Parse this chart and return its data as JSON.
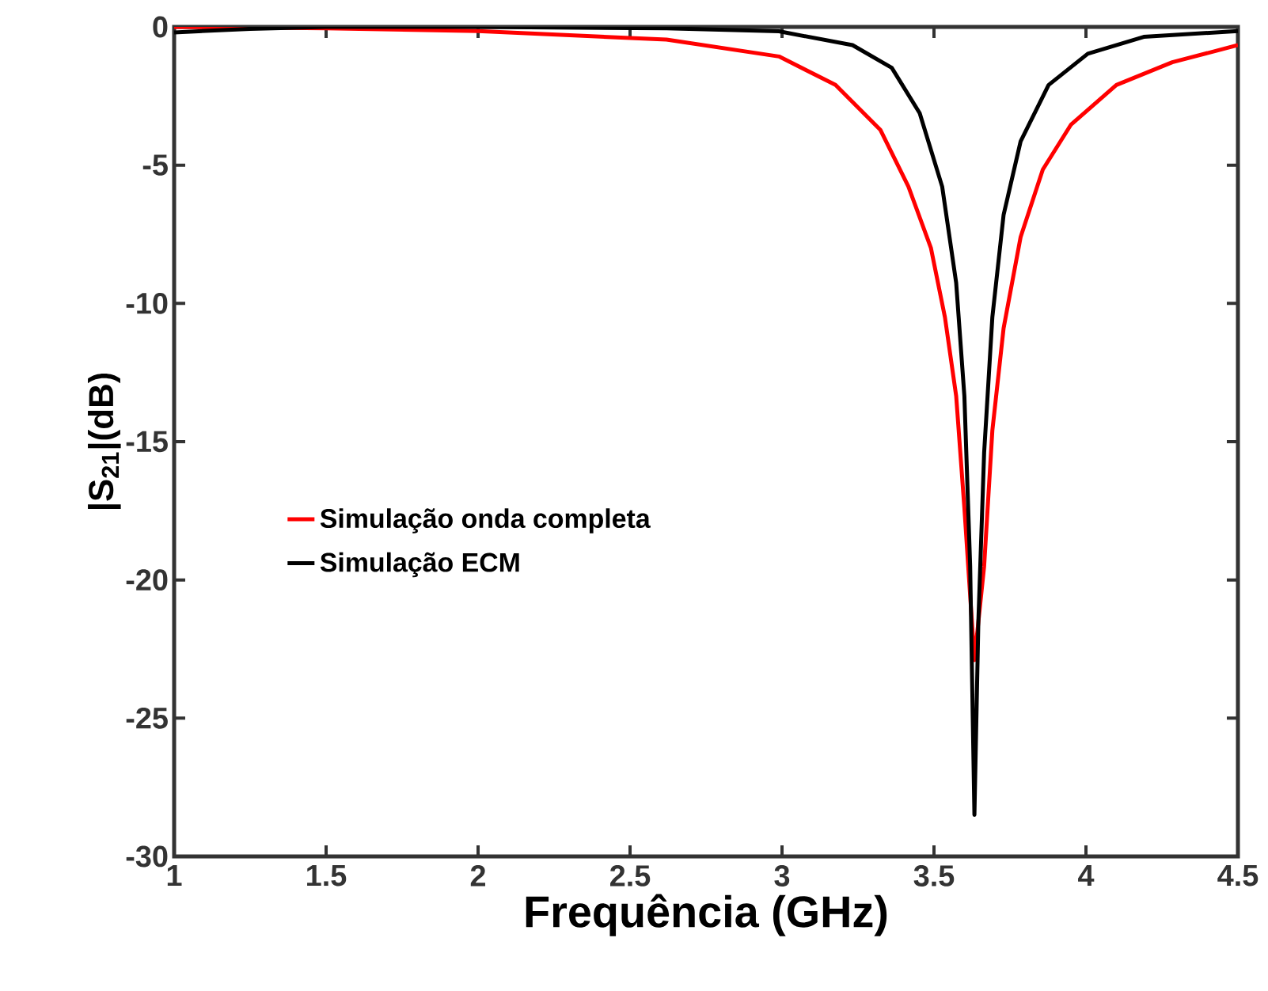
{
  "chart_data": {
    "type": "line",
    "xlabel": "Frequência (GHz)",
    "ylabel": "|S$_{21}$|(dB)",
    "xlim": [
      1,
      4.5
    ],
    "ylim": [
      -30,
      0
    ],
    "xticks": [
      1,
      1.5,
      2,
      2.5,
      3,
      3.5,
      4,
      4.5
    ],
    "yticks": [
      -30,
      -25,
      -20,
      -15,
      -10,
      -5,
      0
    ],
    "grid": false,
    "legend": "left",
    "marker": "none",
    "line_style": "solid",
    "series": [
      {
        "name": "Simulação onda completa",
        "color": "#ff0000",
        "x": [
          1,
          1.5,
          2,
          2.5,
          2.62,
          2.99,
          3.176,
          3.324,
          3.416,
          3.49,
          3.536,
          3.573,
          3.6,
          3.633,
          3.665,
          3.692,
          3.729,
          3.785,
          3.858,
          3.951,
          4.1,
          4.284,
          4.5
        ],
        "values": [
          0,
          -0.05,
          -0.15,
          -0.4,
          -0.46,
          -1.07,
          -2.1,
          -3.73,
          -5.78,
          -8.0,
          -10.5,
          -13.35,
          -17.4,
          -22.9,
          -19.5,
          -14.6,
          -10.9,
          -7.6,
          -5.16,
          -3.53,
          -2.1,
          -1.28,
          -0.66
        ]
      },
      {
        "name": "Simulação ECM",
        "color": "#000000",
        "x": [
          1,
          1.25,
          1.5,
          2,
          2.62,
          2.99,
          3.232,
          3.361,
          3.453,
          3.527,
          3.573,
          3.6,
          3.619,
          3.633,
          3.646,
          3.665,
          3.692,
          3.729,
          3.785,
          3.877,
          4.006,
          4.19,
          4.5
        ],
        "values": [
          -0.2,
          -0.07,
          0,
          0,
          -0.05,
          -0.16,
          -0.66,
          -1.48,
          -3.12,
          -5.78,
          -9.26,
          -13.35,
          -19.5,
          -28.5,
          -21.5,
          -15.4,
          -10.5,
          -6.8,
          -4.14,
          -2.1,
          -0.97,
          -0.36,
          -0.15
        ]
      }
    ]
  }
}
